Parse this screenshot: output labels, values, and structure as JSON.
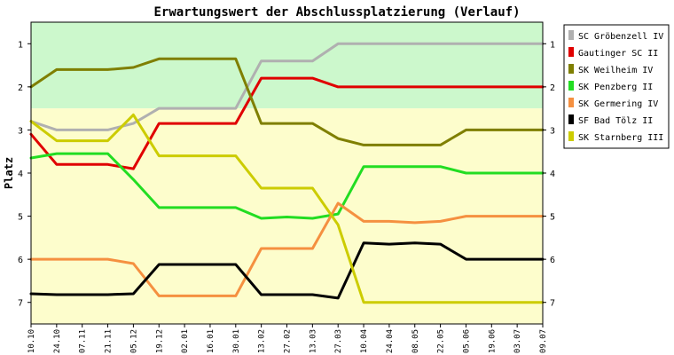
{
  "chart_data": {
    "type": "line",
    "title": "Erwartungswert der Abschlussplatzierung (Verlauf)",
    "ylabel": "Platz",
    "xlabel": "",
    "ylim": [
      0.5,
      7.5
    ],
    "y_inverted": true,
    "y_ticks": [
      "1",
      "2",
      "3",
      "4",
      "5",
      "6",
      "7"
    ],
    "grid": false,
    "legend_position": "right",
    "bands": [
      {
        "from": 0.5,
        "to": 2.5,
        "color": "#ccf8cc"
      },
      {
        "from": 2.5,
        "to": 7.5,
        "color": "#fdfdcc"
      }
    ],
    "x": [
      "10.10",
      "24.10",
      "07.11",
      "21.11",
      "05.12",
      "19.12",
      "02.01",
      "16.01",
      "30.01",
      "13.02",
      "27.02",
      "13.03",
      "27.03",
      "10.04",
      "24.04",
      "08.05",
      "22.05",
      "05.06",
      "19.06",
      "03.07",
      "09.07"
    ],
    "series": [
      {
        "name": "SC Gröbenzell IV",
        "color": "#b0b0b0",
        "values": [
          2.8,
          3.0,
          3.0,
          3.0,
          2.85,
          2.5,
          2.5,
          2.5,
          2.5,
          1.4,
          1.4,
          1.4,
          1.0,
          1.0,
          1.0,
          1.0,
          1.0,
          1.0,
          1.0,
          1.0,
          1.0
        ]
      },
      {
        "name": "Gautinger SC II",
        "color": "#e00000",
        "values": [
          3.1,
          3.8,
          3.8,
          3.8,
          3.9,
          2.85,
          2.85,
          2.85,
          2.85,
          1.8,
          1.8,
          1.8,
          2.0,
          2.0,
          2.0,
          2.0,
          2.0,
          2.0,
          2.0,
          2.0,
          2.0
        ]
      },
      {
        "name": "SK Weilheim IV",
        "color": "#7f7f00",
        "values": [
          2.0,
          1.6,
          1.6,
          1.6,
          1.55,
          1.35,
          1.35,
          1.35,
          1.35,
          2.85,
          2.85,
          2.85,
          3.2,
          3.35,
          3.35,
          3.35,
          3.35,
          3.0,
          3.0,
          3.0,
          3.0
        ]
      },
      {
        "name": "SK Penzberg II",
        "color": "#22dd22",
        "values": [
          3.65,
          3.55,
          3.55,
          3.55,
          4.15,
          4.8,
          4.8,
          4.8,
          4.8,
          5.05,
          5.02,
          5.05,
          4.95,
          3.85,
          3.85,
          3.85,
          3.85,
          4.0,
          4.0,
          4.0,
          4.0
        ]
      },
      {
        "name": "SK Germering IV",
        "color": "#f59040",
        "values": [
          6.0,
          6.0,
          6.0,
          6.0,
          6.1,
          6.85,
          6.85,
          6.85,
          6.85,
          5.75,
          5.75,
          5.75,
          4.7,
          5.12,
          5.12,
          5.15,
          5.12,
          5.0,
          5.0,
          5.0,
          5.0
        ]
      },
      {
        "name": "SF Bad Tölz II",
        "color": "#000000",
        "values": [
          6.8,
          6.82,
          6.82,
          6.82,
          6.8,
          6.12,
          6.12,
          6.12,
          6.12,
          6.82,
          6.82,
          6.82,
          6.9,
          5.62,
          5.65,
          5.62,
          5.65,
          6.0,
          6.0,
          6.0,
          6.0
        ]
      },
      {
        "name": "SK Starnberg III",
        "color": "#cccc00",
        "values": [
          2.8,
          3.25,
          3.25,
          3.25,
          2.65,
          3.6,
          3.6,
          3.6,
          3.6,
          4.35,
          4.35,
          4.35,
          5.2,
          7.0,
          7.0,
          7.0,
          7.0,
          7.0,
          7.0,
          7.0,
          7.0
        ]
      }
    ]
  }
}
